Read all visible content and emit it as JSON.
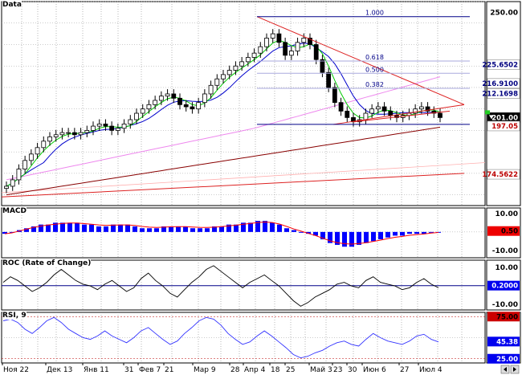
{
  "panels": {
    "main": {
      "title": "Data"
    },
    "macd": {
      "title": "MACD"
    },
    "roc": {
      "title": "ROC (Rate of Change)"
    },
    "rsi": {
      "title": "RSI, 9"
    }
  },
  "colors": {
    "candle": "#000000",
    "ma_green": "#00cc00",
    "ma_blue": "#0000cc",
    "ma_pink": "#ee88ee",
    "ma_brown": "#880000",
    "trend_red": "#dd2222",
    "fib_blue": "#000088",
    "macd_hist": "#0000ff",
    "macd_signal": "#ff0000",
    "rsi_line": "#3333ff",
    "level_red": "#bb0000",
    "tag_navy": "#000080"
  },
  "chart_data": [
    {
      "type": "candlestick",
      "panel": "Data",
      "ylim": [
        160,
        255
      ],
      "y_ticks": [
        "250.00"
      ],
      "x_ticks": [
        "Ноя 22",
        "Дек 13",
        "Янв 11",
        "31",
        "Фев 7",
        "21",
        "Мар 9",
        "28",
        "Апр 4",
        "18",
        "25",
        "Май 3",
        "23",
        "30",
        "Июн 6",
        "27",
        "Июл 4"
      ],
      "price_series_est": [
        169,
        172,
        177,
        181,
        184,
        187,
        190,
        192,
        193,
        194,
        194,
        193,
        194,
        195,
        197,
        198,
        197,
        195,
        196,
        198,
        200,
        203,
        205,
        207,
        209,
        211,
        212,
        210,
        207,
        206,
        205,
        208,
        212,
        216,
        219,
        221,
        223,
        225,
        227,
        229,
        231,
        234,
        238,
        240,
        236,
        230,
        232,
        236,
        238,
        235,
        228,
        222,
        215,
        208,
        204,
        201,
        199,
        200,
        203,
        205,
        206,
        204,
        202,
        201,
        202,
        203,
        205,
        206,
        204,
        203,
        201
      ],
      "fib_levels": [
        {
          "label": "1.000",
          "value": 248.0
        },
        {
          "label": "0.618",
          "value": 227.3
        },
        {
          "label": "0.500",
          "value": 221.6
        },
        {
          "label": "0.382",
          "value": 214.6
        }
      ],
      "price_tags": [
        {
          "label": "250.00",
          "value": 250.0,
          "kind": "axis"
        },
        {
          "label": "225.6502",
          "value": 225.65,
          "kind": "fib"
        },
        {
          "label": "216.9100",
          "value": 216.91,
          "kind": "fib"
        },
        {
          "label": "212.1698",
          "value": 212.17,
          "kind": "fib"
        },
        {
          "label": "201.00",
          "value": 201.0,
          "kind": "last"
        },
        {
          "label": "197.05",
          "value": 197.05,
          "kind": "ma"
        },
        {
          "label": "174.5622",
          "value": 174.56,
          "kind": "trend"
        }
      ],
      "horizontal_levels": [
        {
          "value": 197.8
        }
      ]
    },
    {
      "type": "bar",
      "panel": "MACD",
      "ylim": [
        -14,
        13
      ],
      "y_ticks": [
        "10.00",
        "-10.00"
      ],
      "histogram_est": [
        -1,
        0,
        1,
        2,
        3,
        4,
        4,
        5,
        5,
        5,
        5,
        4,
        4,
        3,
        3,
        4,
        4,
        4,
        3,
        2,
        2,
        2,
        3,
        3,
        3,
        3,
        2,
        2,
        2,
        3,
        3,
        4,
        4,
        5,
        5,
        6,
        6,
        5,
        4,
        2,
        1,
        0,
        -1,
        -2,
        -4,
        -6,
        -7,
        -8,
        -8,
        -7,
        -6,
        -5,
        -4,
        -3,
        -2,
        -2,
        -1,
        -1,
        -1,
        0,
        0
      ],
      "signal_est": [
        -1,
        -0.5,
        0.5,
        1.5,
        2.5,
        3.2,
        3.8,
        4.2,
        4.6,
        4.8,
        4.8,
        4.5,
        4.2,
        3.8,
        3.6,
        3.7,
        3.8,
        3.8,
        3.5,
        3.0,
        2.6,
        2.4,
        2.6,
        2.8,
        2.9,
        2.9,
        2.7,
        2.5,
        2.4,
        2.6,
        2.9,
        3.3,
        3.7,
        4.2,
        4.6,
        5.1,
        5.4,
        5.1,
        4.3,
        3.0,
        1.6,
        0.4,
        -0.8,
        -2.0,
        -3.4,
        -4.8,
        -5.8,
        -6.4,
        -6.6,
        -6.3,
        -5.8,
        -5.1,
        -4.4,
        -3.6,
        -2.9,
        -2.4,
        -1.8,
        -1.4,
        -1.1,
        -0.6,
        -0.3
      ],
      "last_value_tag": "0.50"
    },
    {
      "type": "line",
      "panel": "ROC (Rate of Change)",
      "ylim": [
        -13,
        14
      ],
      "y_ticks": [
        "10.00",
        "-10.00"
      ],
      "values_est": [
        2,
        5,
        3,
        0,
        -3,
        -1,
        2,
        6,
        9,
        6,
        3,
        1,
        0,
        -2,
        1,
        3,
        0,
        -3,
        -1,
        4,
        7,
        3,
        0,
        -4,
        -6,
        -2,
        2,
        5,
        9,
        11,
        8,
        5,
        2,
        -1,
        2,
        4,
        6,
        3,
        0,
        -4,
        -8,
        -11,
        -9,
        -6,
        -4,
        -2,
        1,
        2,
        0,
        -1,
        3,
        5,
        2,
        1,
        0,
        -2,
        -1,
        2,
        4,
        1,
        -1
      ],
      "reference_level": 0.2,
      "last_value_tag": "0.2000"
    },
    {
      "type": "line",
      "panel": "RSI, 9",
      "ylim": [
        20,
        80
      ],
      "levels": [
        75,
        25
      ],
      "level_tags": [
        "75.00",
        "25.00"
      ],
      "values_est": [
        70,
        72,
        68,
        60,
        55,
        62,
        70,
        74,
        68,
        60,
        55,
        50,
        48,
        52,
        58,
        52,
        48,
        44,
        50,
        58,
        62,
        55,
        48,
        42,
        46,
        55,
        62,
        70,
        74,
        72,
        65,
        55,
        48,
        42,
        45,
        52,
        58,
        52,
        45,
        38,
        30,
        26,
        28,
        32,
        35,
        40,
        44,
        46,
        42,
        40,
        48,
        55,
        50,
        46,
        44,
        42,
        46,
        52,
        54,
        48,
        45
      ],
      "last_value_tag": "45.38"
    }
  ]
}
